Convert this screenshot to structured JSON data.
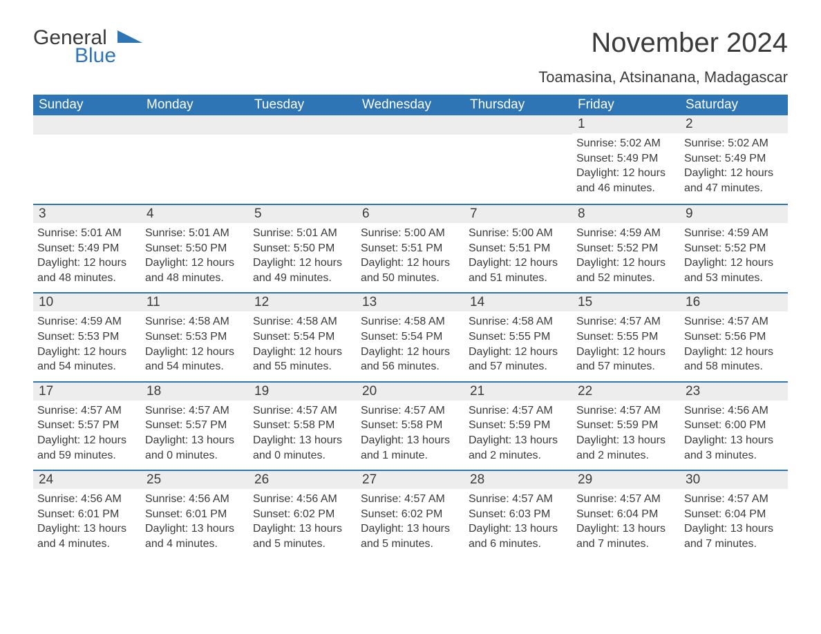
{
  "logo": {
    "word1": "General",
    "word2": "Blue",
    "triangle_color": "#2e75b6",
    "text_color": "#3a3a3a"
  },
  "header": {
    "month_title": "November 2024",
    "location": "Toamasina, Atsinanana, Madagascar"
  },
  "colors": {
    "header_bg": "#2e75b6",
    "header_text": "#ffffff",
    "daynum_bg": "#ededed",
    "border": "#2e75b6",
    "body_text": "#3a3a3a",
    "page_bg": "#ffffff"
  },
  "day_names": [
    "Sunday",
    "Monday",
    "Tuesday",
    "Wednesday",
    "Thursday",
    "Friday",
    "Saturday"
  ],
  "weeks": [
    [
      null,
      null,
      null,
      null,
      null,
      {
        "n": "1",
        "sunrise": "Sunrise: 5:02 AM",
        "sunset": "Sunset: 5:49 PM",
        "daylight": "Daylight: 12 hours and 46 minutes."
      },
      {
        "n": "2",
        "sunrise": "Sunrise: 5:02 AM",
        "sunset": "Sunset: 5:49 PM",
        "daylight": "Daylight: 12 hours and 47 minutes."
      }
    ],
    [
      {
        "n": "3",
        "sunrise": "Sunrise: 5:01 AM",
        "sunset": "Sunset: 5:49 PM",
        "daylight": "Daylight: 12 hours and 48 minutes."
      },
      {
        "n": "4",
        "sunrise": "Sunrise: 5:01 AM",
        "sunset": "Sunset: 5:50 PM",
        "daylight": "Daylight: 12 hours and 48 minutes."
      },
      {
        "n": "5",
        "sunrise": "Sunrise: 5:01 AM",
        "sunset": "Sunset: 5:50 PM",
        "daylight": "Daylight: 12 hours and 49 minutes."
      },
      {
        "n": "6",
        "sunrise": "Sunrise: 5:00 AM",
        "sunset": "Sunset: 5:51 PM",
        "daylight": "Daylight: 12 hours and 50 minutes."
      },
      {
        "n": "7",
        "sunrise": "Sunrise: 5:00 AM",
        "sunset": "Sunset: 5:51 PM",
        "daylight": "Daylight: 12 hours and 51 minutes."
      },
      {
        "n": "8",
        "sunrise": "Sunrise: 4:59 AM",
        "sunset": "Sunset: 5:52 PM",
        "daylight": "Daylight: 12 hours and 52 minutes."
      },
      {
        "n": "9",
        "sunrise": "Sunrise: 4:59 AM",
        "sunset": "Sunset: 5:52 PM",
        "daylight": "Daylight: 12 hours and 53 minutes."
      }
    ],
    [
      {
        "n": "10",
        "sunrise": "Sunrise: 4:59 AM",
        "sunset": "Sunset: 5:53 PM",
        "daylight": "Daylight: 12 hours and 54 minutes."
      },
      {
        "n": "11",
        "sunrise": "Sunrise: 4:58 AM",
        "sunset": "Sunset: 5:53 PM",
        "daylight": "Daylight: 12 hours and 54 minutes."
      },
      {
        "n": "12",
        "sunrise": "Sunrise: 4:58 AM",
        "sunset": "Sunset: 5:54 PM",
        "daylight": "Daylight: 12 hours and 55 minutes."
      },
      {
        "n": "13",
        "sunrise": "Sunrise: 4:58 AM",
        "sunset": "Sunset: 5:54 PM",
        "daylight": "Daylight: 12 hours and 56 minutes."
      },
      {
        "n": "14",
        "sunrise": "Sunrise: 4:58 AM",
        "sunset": "Sunset: 5:55 PM",
        "daylight": "Daylight: 12 hours and 57 minutes."
      },
      {
        "n": "15",
        "sunrise": "Sunrise: 4:57 AM",
        "sunset": "Sunset: 5:55 PM",
        "daylight": "Daylight: 12 hours and 57 minutes."
      },
      {
        "n": "16",
        "sunrise": "Sunrise: 4:57 AM",
        "sunset": "Sunset: 5:56 PM",
        "daylight": "Daylight: 12 hours and 58 minutes."
      }
    ],
    [
      {
        "n": "17",
        "sunrise": "Sunrise: 4:57 AM",
        "sunset": "Sunset: 5:57 PM",
        "daylight": "Daylight: 12 hours and 59 minutes."
      },
      {
        "n": "18",
        "sunrise": "Sunrise: 4:57 AM",
        "sunset": "Sunset: 5:57 PM",
        "daylight": "Daylight: 13 hours and 0 minutes."
      },
      {
        "n": "19",
        "sunrise": "Sunrise: 4:57 AM",
        "sunset": "Sunset: 5:58 PM",
        "daylight": "Daylight: 13 hours and 0 minutes."
      },
      {
        "n": "20",
        "sunrise": "Sunrise: 4:57 AM",
        "sunset": "Sunset: 5:58 PM",
        "daylight": "Daylight: 13 hours and 1 minute."
      },
      {
        "n": "21",
        "sunrise": "Sunrise: 4:57 AM",
        "sunset": "Sunset: 5:59 PM",
        "daylight": "Daylight: 13 hours and 2 minutes."
      },
      {
        "n": "22",
        "sunrise": "Sunrise: 4:57 AM",
        "sunset": "Sunset: 5:59 PM",
        "daylight": "Daylight: 13 hours and 2 minutes."
      },
      {
        "n": "23",
        "sunrise": "Sunrise: 4:56 AM",
        "sunset": "Sunset: 6:00 PM",
        "daylight": "Daylight: 13 hours and 3 minutes."
      }
    ],
    [
      {
        "n": "24",
        "sunrise": "Sunrise: 4:56 AM",
        "sunset": "Sunset: 6:01 PM",
        "daylight": "Daylight: 13 hours and 4 minutes."
      },
      {
        "n": "25",
        "sunrise": "Sunrise: 4:56 AM",
        "sunset": "Sunset: 6:01 PM",
        "daylight": "Daylight: 13 hours and 4 minutes."
      },
      {
        "n": "26",
        "sunrise": "Sunrise: 4:56 AM",
        "sunset": "Sunset: 6:02 PM",
        "daylight": "Daylight: 13 hours and 5 minutes."
      },
      {
        "n": "27",
        "sunrise": "Sunrise: 4:57 AM",
        "sunset": "Sunset: 6:02 PM",
        "daylight": "Daylight: 13 hours and 5 minutes."
      },
      {
        "n": "28",
        "sunrise": "Sunrise: 4:57 AM",
        "sunset": "Sunset: 6:03 PM",
        "daylight": "Daylight: 13 hours and 6 minutes."
      },
      {
        "n": "29",
        "sunrise": "Sunrise: 4:57 AM",
        "sunset": "Sunset: 6:04 PM",
        "daylight": "Daylight: 13 hours and 7 minutes."
      },
      {
        "n": "30",
        "sunrise": "Sunrise: 4:57 AM",
        "sunset": "Sunset: 6:04 PM",
        "daylight": "Daylight: 13 hours and 7 minutes."
      }
    ]
  ]
}
